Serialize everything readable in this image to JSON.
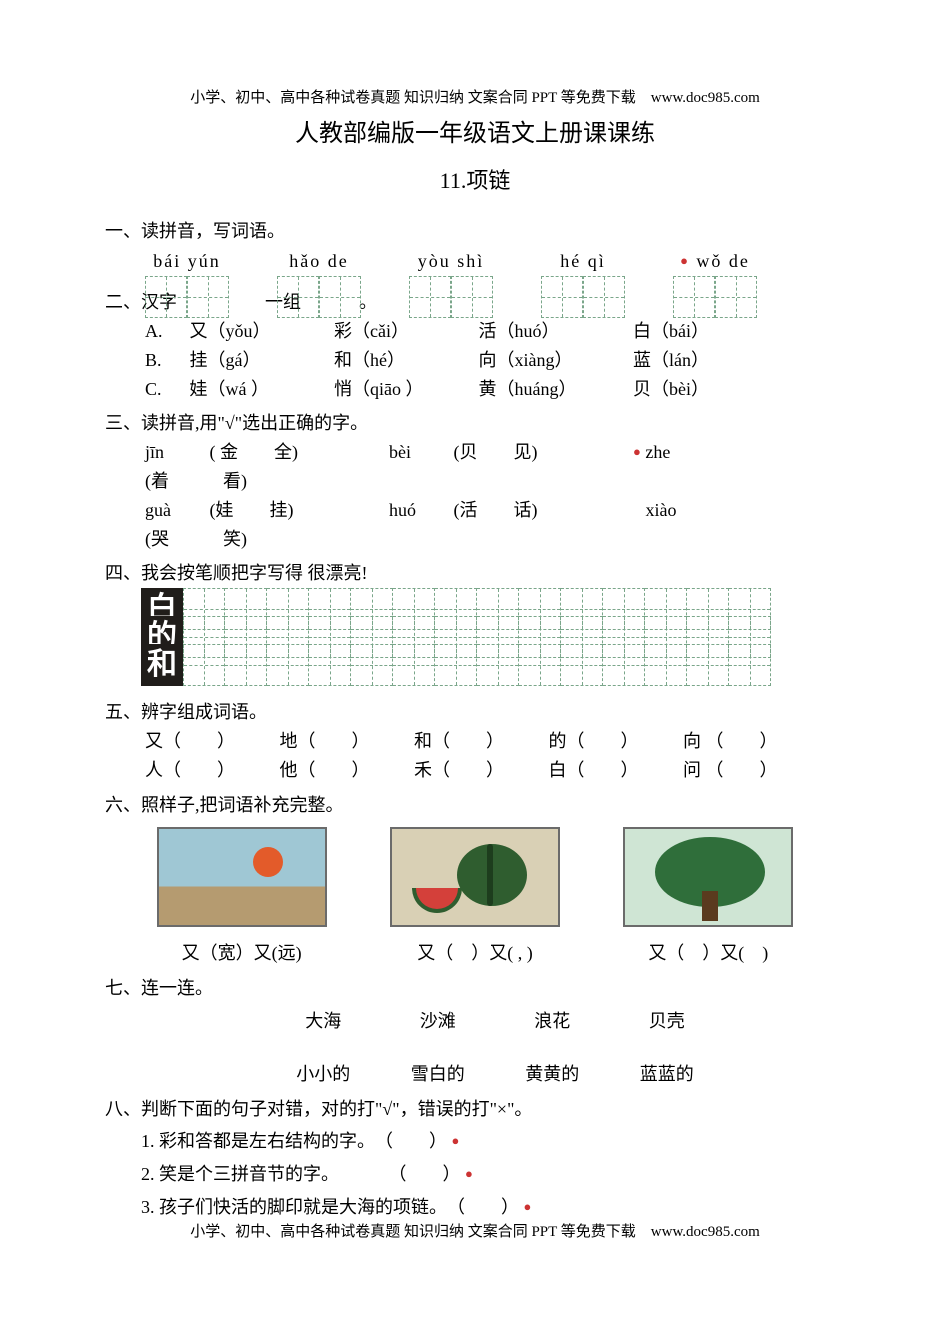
{
  "header_footer": "小学、初中、高中各种试卷真题 知识归纳 文案合同 PPT 等免费下载　www.doc985.com",
  "title_main": "人教部编版一年级语文上册课课练",
  "title_sub": "11.项链",
  "s1": {
    "heading": "一、读拼音，写词语。",
    "items": [
      {
        "pinyin": "bái yún"
      },
      {
        "pinyin": "hǎo de"
      },
      {
        "pinyin": "yòu shì"
      },
      {
        "pinyin": "hé qì"
      },
      {
        "pinyin": "wǒ de"
      }
    ]
  },
  "s2": {
    "heading": "二、汉字",
    "heading_tail": "一组",
    "rows": [
      {
        "label": "A.",
        "c1": "又（yǒu）",
        "c2": "彩（cǎi）",
        "c3": "活（huó）",
        "c4": "白（bái）"
      },
      {
        "label": "B.",
        "c1": "挂（gá）",
        "c2": "和（hé）",
        "c3": "向（xiàng）",
        "c4": "蓝（lán）"
      },
      {
        "label": "C.",
        "c1": "娃（wá ）",
        "c2": "悄（qiāo ）",
        "c3": "黄（huáng）",
        "c4": "贝（bèi）"
      }
    ]
  },
  "s3": {
    "heading": "三、读拼音,用\"√\"选出正确的字。",
    "rows": [
      [
        {
          "p": "jīn",
          "par": "( 金　　全)"
        },
        {
          "p": "bèi",
          "par": "(贝　　见)"
        },
        {
          "p": "zhe",
          "par": "(着　　　看)"
        }
      ],
      [
        {
          "p": "guà",
          "par": "(娃　　挂)"
        },
        {
          "p": "huó",
          "par": "(活　　话)"
        },
        {
          "p": "xiào",
          "par": "(哭　　　笑)"
        }
      ]
    ]
  },
  "s4": {
    "heading": "四、我会按笔顺把字写得 很漂亮!",
    "chars": [
      "白",
      "的",
      "和"
    ],
    "cells_per_row": 14
  },
  "s5": {
    "heading": "五、辨字组成词语。",
    "rows": [
      [
        "又（　　）",
        "地（　　）",
        "和（　　）",
        "的（　　）",
        "向 （　　）"
      ],
      [
        "人（　　）",
        "他（　　）",
        "禾（　　）",
        "白（　　）",
        "问 （　　）"
      ]
    ]
  },
  "s6": {
    "heading": "六、照样子,把词语补充完整。",
    "captions": [
      "又（宽）又(远)",
      "又（　）又( , )",
      "又（　）又(　)"
    ]
  },
  "s7": {
    "heading": "七、连一连。",
    "top": [
      "大海",
      "沙滩",
      "浪花",
      "贝壳"
    ],
    "bottom": [
      "小小的",
      "雪白的",
      "黄黄的",
      "蓝蓝的"
    ]
  },
  "s8": {
    "heading": "八、判断下面的句子对错，对的打\"√\"，错误的打\"×\"。",
    "items": [
      "1.  彩和答都是左右结构的字。　（　　）",
      "2.  笑是个三拼音节的字。　　　 （　　）",
      "3.  孩子们快活的脚印就是大海的项链。　（　　）"
    ]
  },
  "colors": {
    "text": "#000000",
    "bg": "#ffffff",
    "grid": "#7aa68a",
    "dot": "#cc3333",
    "charbox_bg": "#201d1a"
  }
}
